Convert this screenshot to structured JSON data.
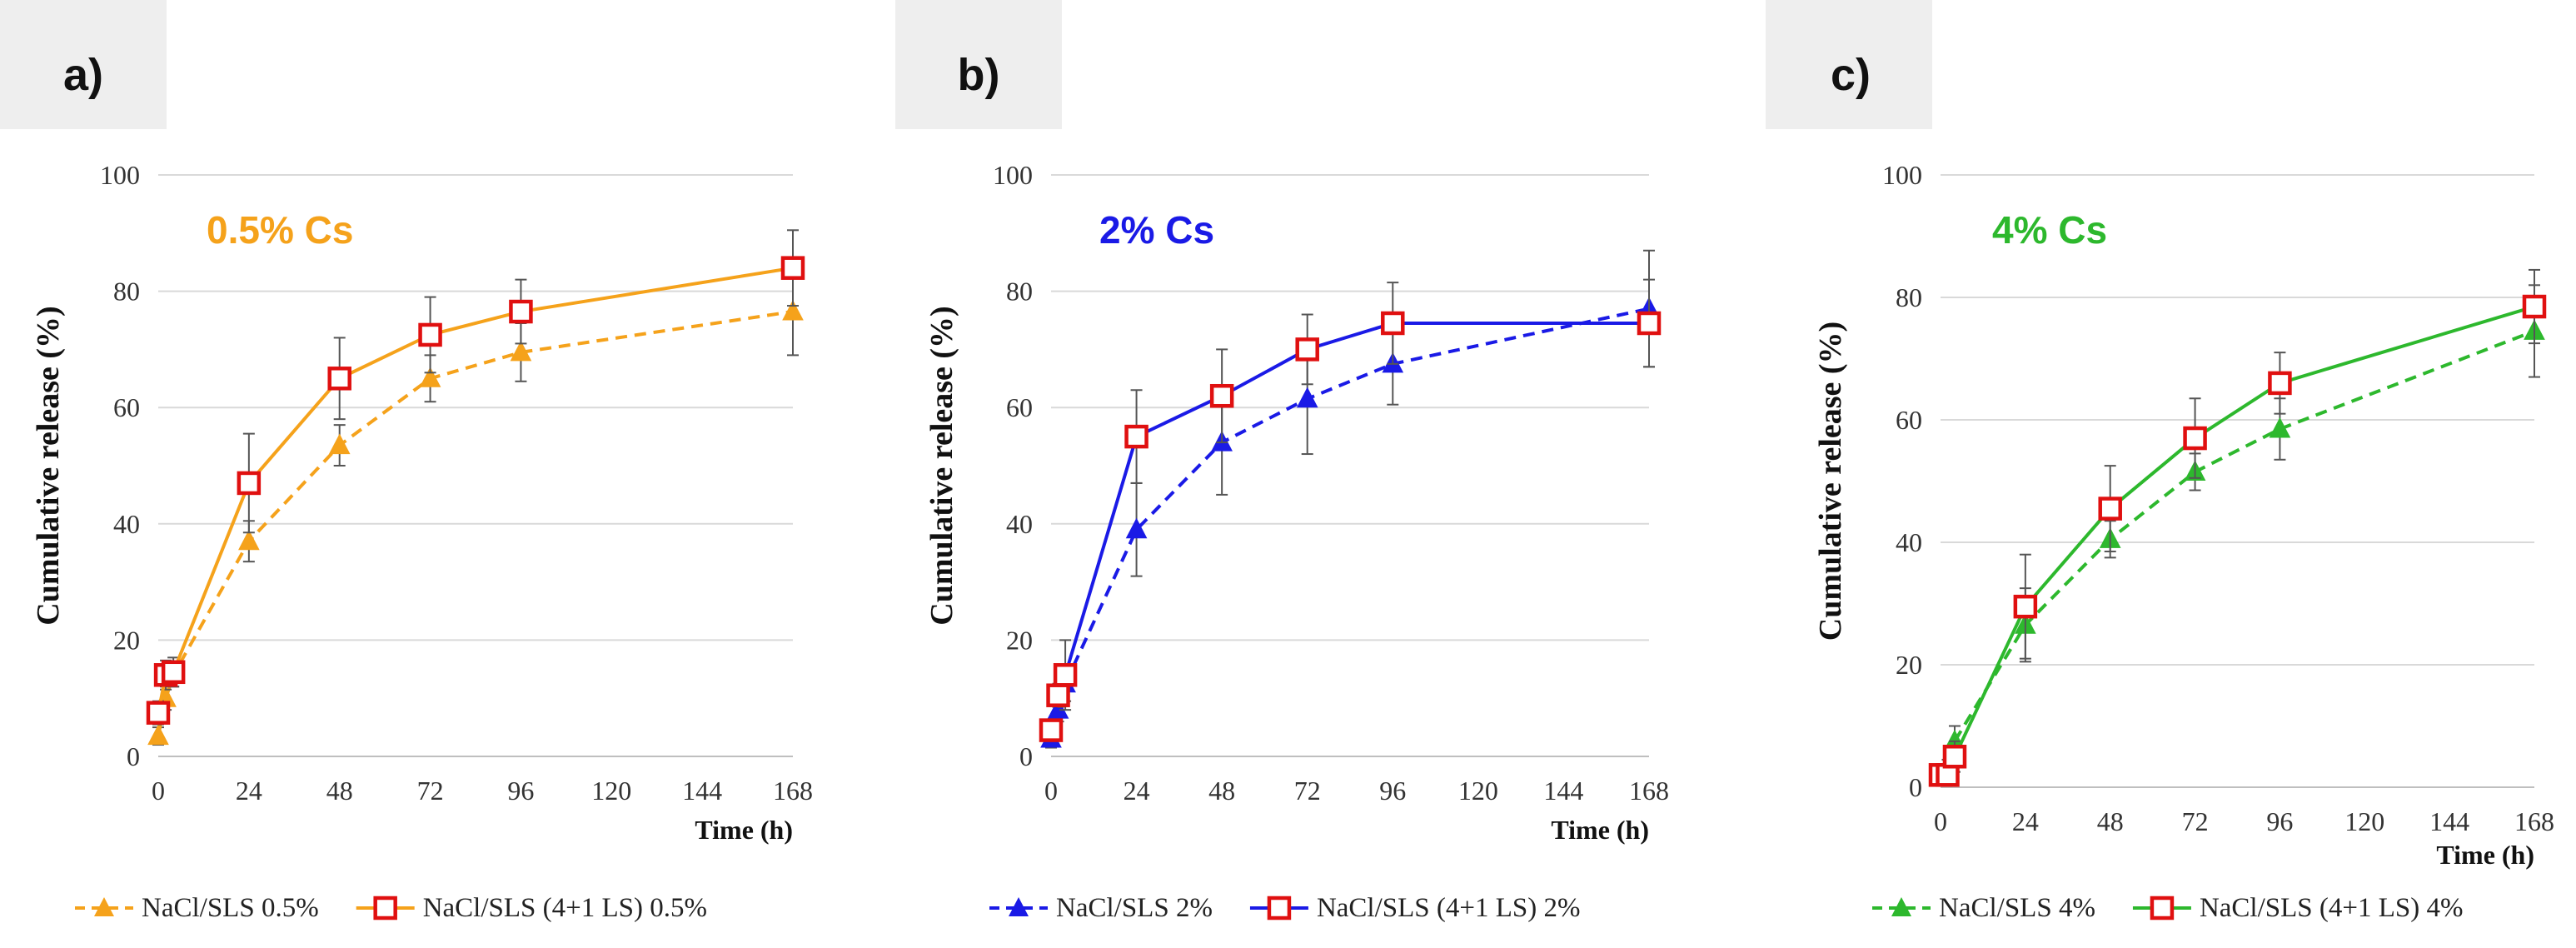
{
  "chart_data": [
    {
      "type": "line",
      "panel_label": "a)",
      "inset_label": "0.5% Cs",
      "accent": "#F5A21B",
      "ylabel": "Cumulative release (%)",
      "xlabel": "Time (h)",
      "ylim": [
        0,
        100
      ],
      "xlim": [
        0,
        168
      ],
      "yticks": [
        0,
        20,
        40,
        60,
        80,
        100
      ],
      "xticks": [
        0,
        24,
        48,
        72,
        96,
        120,
        144,
        168
      ],
      "grid": "horizontal",
      "legend_position": "bottom",
      "series": [
        {
          "name": "NaCl/SLS 0.5%",
          "marker": "triangle",
          "line": "dashed",
          "x": [
            0,
            2,
            4,
            24,
            48,
            72,
            96,
            168
          ],
          "y": [
            3.5,
            10,
            14,
            37,
            53.5,
            65,
            69.5,
            76.5
          ],
          "err": [
            1.5,
            2,
            2,
            3.5,
            3.5,
            4,
            5,
            7.5
          ]
        },
        {
          "name": "NaCl/SLS (4+1 LS) 0.5%",
          "marker": "square",
          "line": "solid",
          "x": [
            0,
            2,
            4,
            24,
            48,
            72,
            96,
            168
          ],
          "y": [
            7.5,
            14,
            14.5,
            47,
            65,
            72.5,
            76.5,
            84
          ],
          "err": [
            2,
            2.5,
            2.5,
            8.5,
            7,
            6.5,
            5.5,
            6.5
          ]
        }
      ]
    },
    {
      "type": "line",
      "panel_label": "b)",
      "inset_label": "2% Cs",
      "accent": "#1A1AE6",
      "ylabel": "Cumulative release (%)",
      "xlabel": "Time (h)",
      "ylim": [
        0,
        100
      ],
      "xlim": [
        0,
        168
      ],
      "yticks": [
        0,
        20,
        40,
        60,
        80,
        100
      ],
      "xticks": [
        0,
        24,
        48,
        72,
        96,
        120,
        144,
        168
      ],
      "grid": "horizontal",
      "legend_position": "bottom",
      "series": [
        {
          "name": "NaCl/SLS 2%",
          "marker": "triangle",
          "line": "dashed",
          "x": [
            0,
            2,
            4,
            24,
            48,
            72,
            96,
            168
          ],
          "y": [
            3,
            8,
            12.5,
            39,
            54,
            61.5,
            67.5,
            77
          ],
          "err": [
            1.5,
            2,
            3,
            8,
            9,
            9.5,
            7,
            10
          ]
        },
        {
          "name": "NaCl/SLS (4+1 LS) 2%",
          "marker": "square",
          "line": "solid",
          "x": [
            0,
            2,
            4,
            24,
            48,
            72,
            96,
            168
          ],
          "y": [
            4.5,
            10.5,
            14,
            55,
            62,
            70,
            74.5,
            74.5
          ],
          "err": [
            1.5,
            2,
            6,
            8,
            8,
            6,
            7,
            7.5
          ]
        }
      ]
    },
    {
      "type": "line",
      "panel_label": "c)",
      "inset_label": "4% Cs",
      "accent": "#2DB82D",
      "ylabel": "Cumulative release (%)",
      "xlabel": "Time (h)",
      "ylim": [
        0,
        100
      ],
      "xlim": [
        0,
        168
      ],
      "yticks": [
        0,
        20,
        40,
        60,
        80,
        100
      ],
      "xticks": [
        0,
        24,
        48,
        72,
        96,
        120,
        144,
        168
      ],
      "grid": "horizontal",
      "legend_position": "bottom",
      "series": [
        {
          "name": "NaCl/SLS 4%",
          "marker": "triangle",
          "line": "dashed",
          "x": [
            0,
            2,
            4,
            24,
            48,
            72,
            96,
            168
          ],
          "y": [
            2,
            3,
            7.5,
            26.5,
            40.5,
            51.5,
            58.5,
            74.5
          ],
          "err": [
            1,
            1.5,
            2.5,
            6,
            3,
            3,
            5,
            7.5
          ]
        },
        {
          "name": "NaCl/SLS (4+1 LS) 4%",
          "marker": "square",
          "line": "solid",
          "x": [
            0,
            2,
            4,
            24,
            48,
            72,
            96,
            168
          ],
          "y": [
            2,
            2,
            5,
            29.5,
            45.5,
            57,
            66,
            78.5
          ],
          "err": [
            1,
            1.5,
            2.5,
            8.5,
            7,
            6.5,
            5,
            6
          ]
        }
      ]
    }
  ]
}
